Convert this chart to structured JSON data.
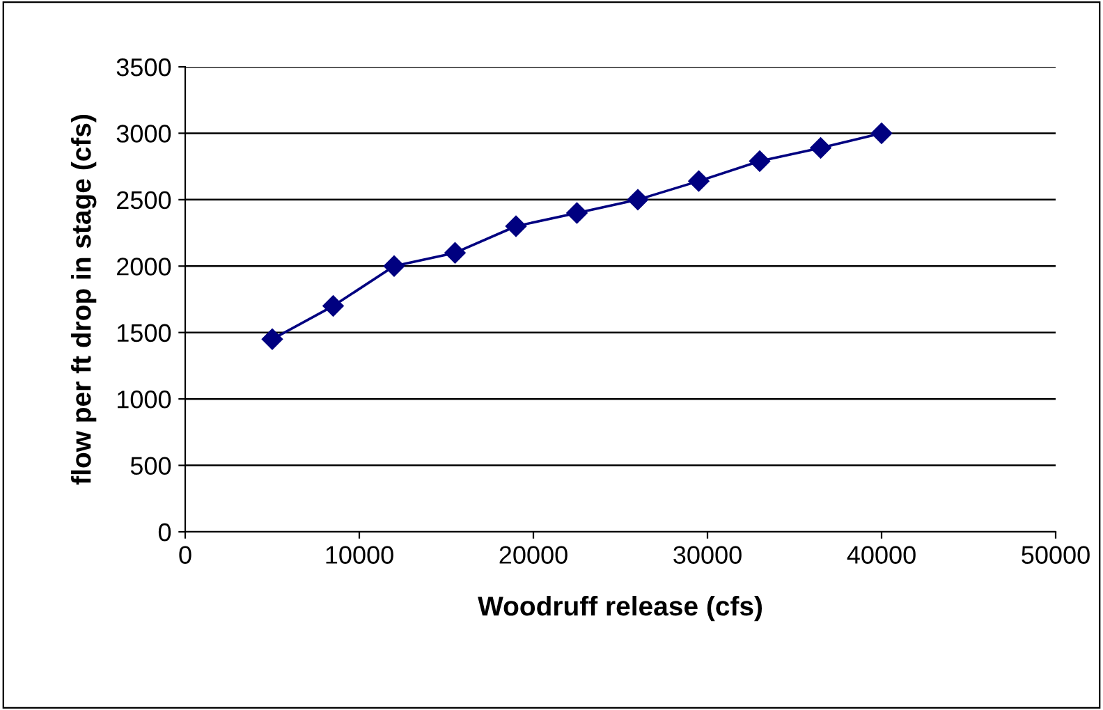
{
  "chart_data": {
    "type": "line",
    "xlabel": "Woodruff release (cfs)",
    "ylabel": "flow per ft drop in stage (cfs)",
    "x": [
      5000,
      8500,
      12000,
      15500,
      19000,
      22500,
      26000,
      29500,
      33000,
      36500,
      40000
    ],
    "series": [
      {
        "color": "#000080",
        "values": [
          1450,
          1700,
          2000,
          2100,
          2300,
          2400,
          2500,
          2640,
          2790,
          2890,
          3000
        ]
      }
    ],
    "xlim": [
      0,
      50000
    ],
    "xticks": [
      0,
      10000,
      20000,
      30000,
      40000,
      50000
    ],
    "ylim": [
      0,
      3500
    ],
    "yticks": [
      0,
      500,
      1000,
      1500,
      2000,
      2500,
      3000,
      3500
    ],
    "grid": "y",
    "marker": "diamond",
    "line_style": "solid",
    "legend": false
  }
}
